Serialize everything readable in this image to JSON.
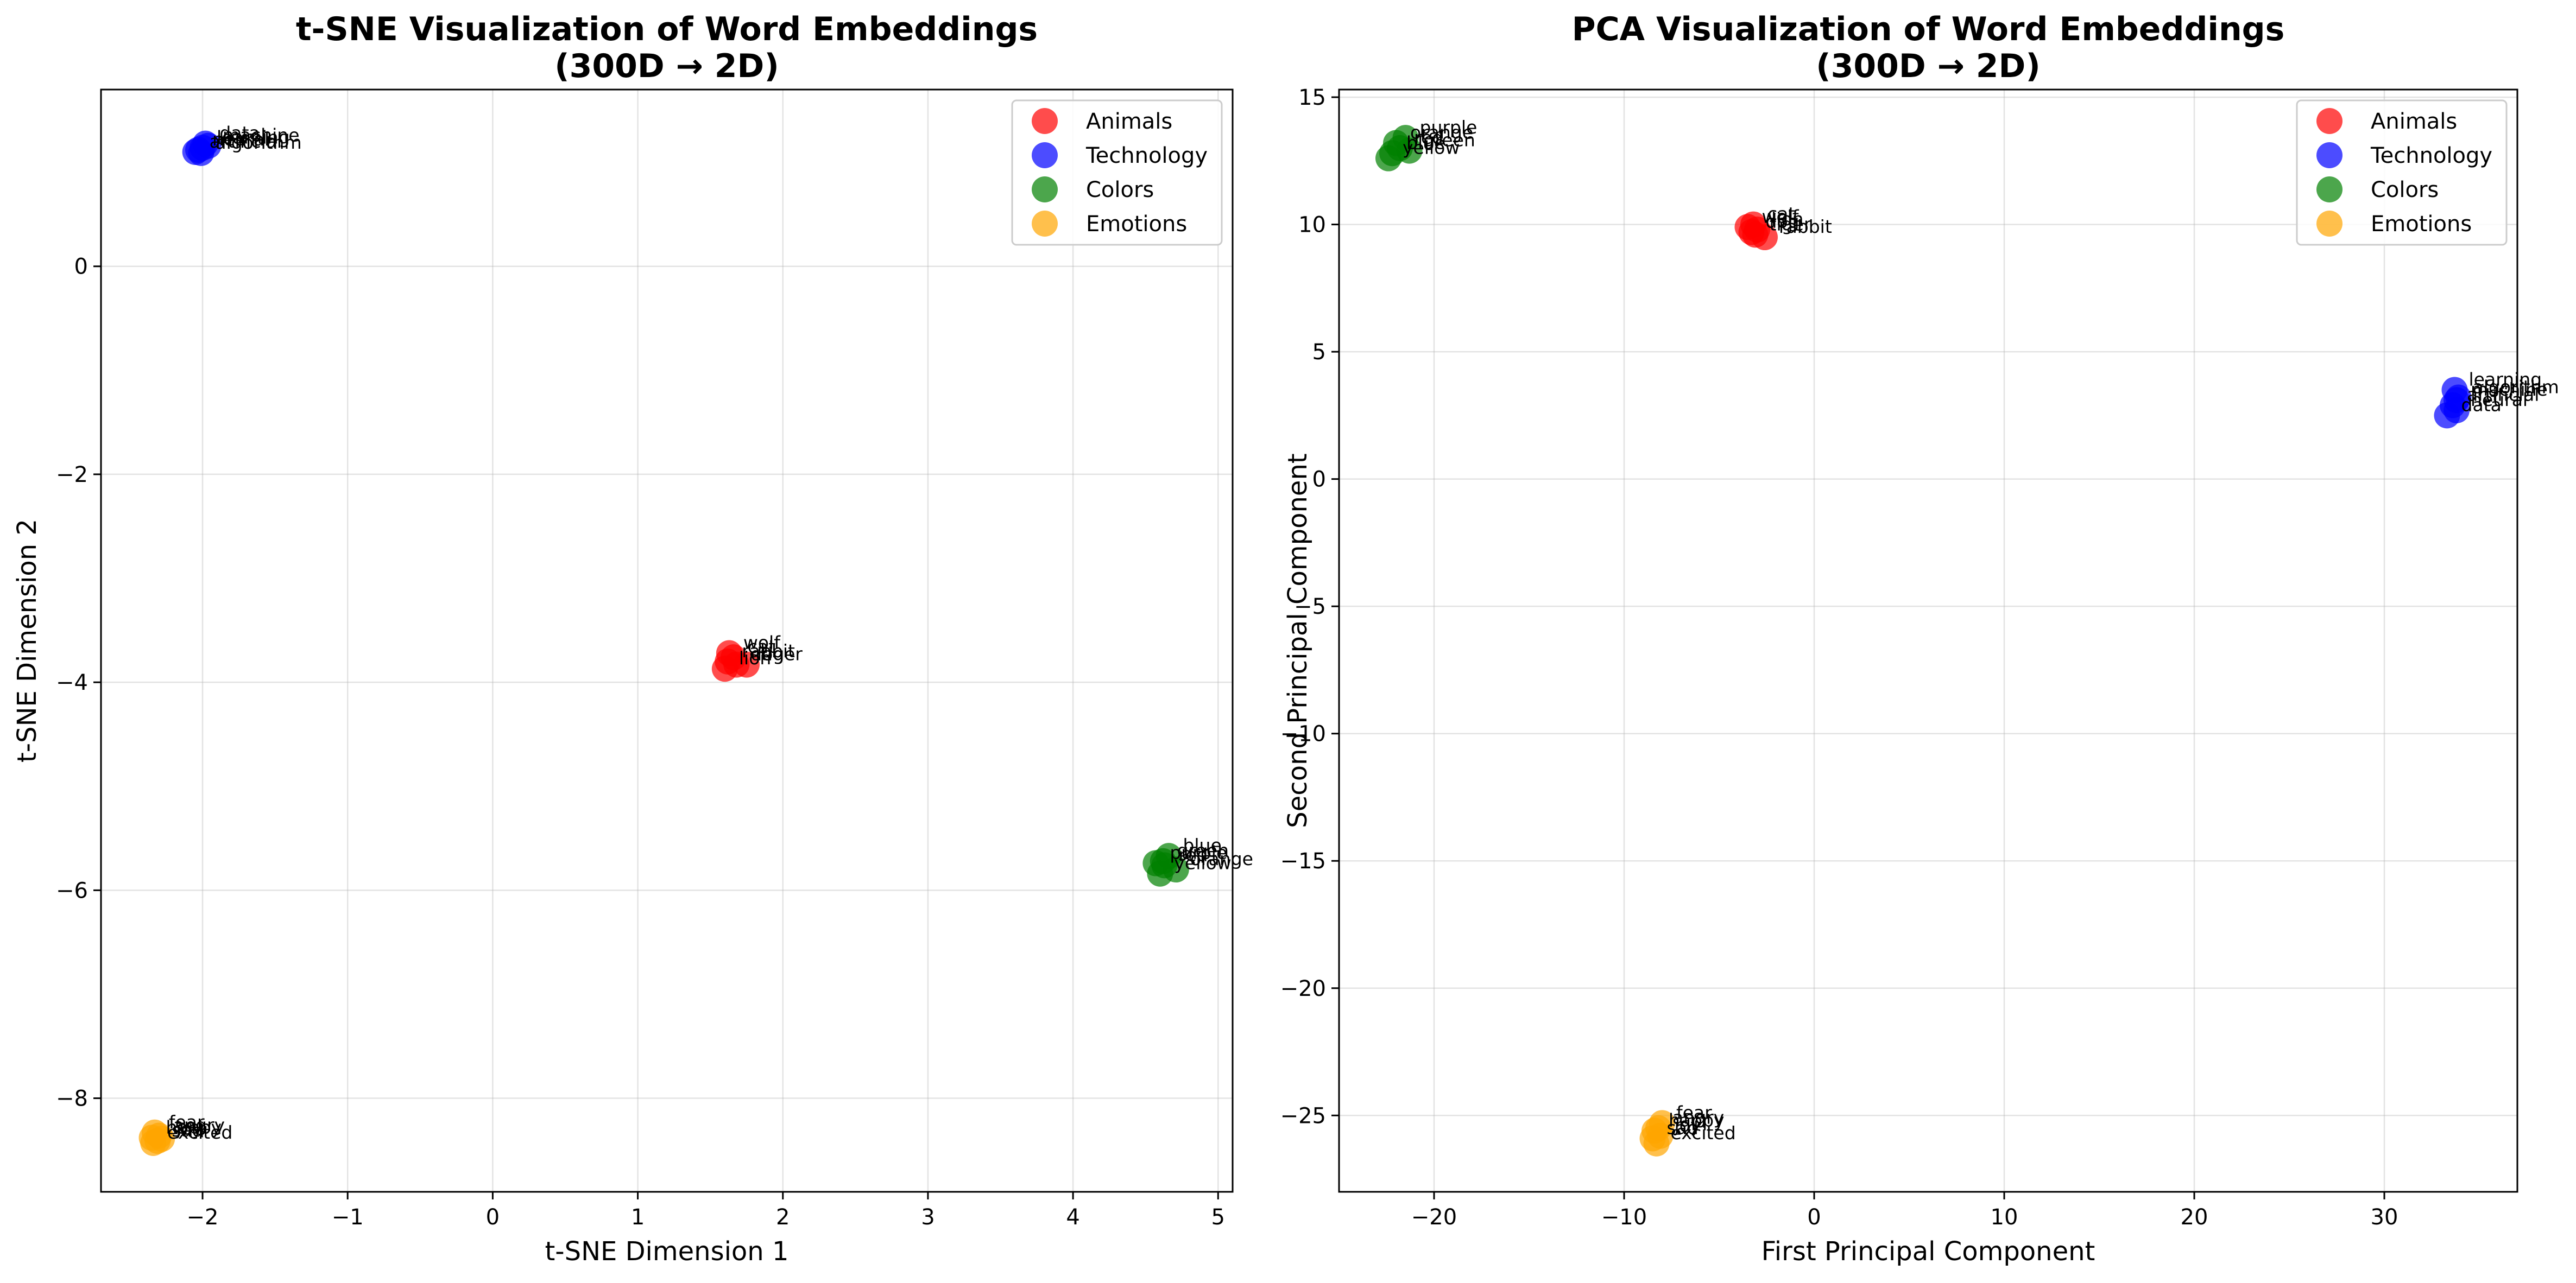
{
  "chart_data": [
    {
      "type": "scatter",
      "title": "t-SNE Visualization of Word Embeddings\n(300D → 2D)",
      "xlabel": "t-SNE Dimension 1",
      "ylabel": "t-SNE Dimension 2",
      "xlim": [
        -2.7,
        5.1
      ],
      "ylim": [
        -8.9,
        1.7
      ],
      "xticks": [
        -2,
        -1,
        0,
        1,
        2,
        3,
        4,
        5
      ],
      "yticks": [
        -8,
        -6,
        -4,
        -2,
        0
      ],
      "grid": true,
      "legend_position": "top-right",
      "series": [
        {
          "name": "Animals",
          "color": "#ff0000",
          "points": [
            {
              "x": 1.63,
              "y": -3.72,
              "label": "wolf"
            },
            {
              "x": 1.66,
              "y": -3.76,
              "label": "cat"
            },
            {
              "x": 1.62,
              "y": -3.8,
              "label": "rabbit"
            },
            {
              "x": 1.68,
              "y": -3.83,
              "label": "dog"
            },
            {
              "x": 1.75,
              "y": -3.83,
              "label": "tiger"
            },
            {
              "x": 1.6,
              "y": -3.87,
              "label": "lion"
            }
          ]
        },
        {
          "name": "Technology",
          "color": "#0000ff",
          "points": [
            {
              "x": -1.98,
              "y": 1.18,
              "label": "data"
            },
            {
              "x": -1.96,
              "y": 1.16,
              "label": "machine"
            },
            {
              "x": -2.0,
              "y": 1.14,
              "label": "learning"
            },
            {
              "x": -2.03,
              "y": 1.12,
              "label": "neural"
            },
            {
              "x": -2.05,
              "y": 1.1,
              "label": "artificial"
            },
            {
              "x": -2.01,
              "y": 1.09,
              "label": "algorithm"
            }
          ]
        },
        {
          "name": "Colors",
          "color": "#008000",
          "points": [
            {
              "x": 4.66,
              "y": -5.67,
              "label": "blue"
            },
            {
              "x": 4.62,
              "y": -5.72,
              "label": "green"
            },
            {
              "x": 4.57,
              "y": -5.74,
              "label": "purple"
            },
            {
              "x": 4.63,
              "y": -5.76,
              "label": "red"
            },
            {
              "x": 4.71,
              "y": -5.8,
              "label": "orange"
            },
            {
              "x": 4.6,
              "y": -5.84,
              "label": "yellow"
            }
          ]
        },
        {
          "name": "Emotions",
          "color": "#ffa500",
          "points": [
            {
              "x": -2.33,
              "y": -8.33,
              "label": "fear"
            },
            {
              "x": -2.3,
              "y": -8.36,
              "label": "angry"
            },
            {
              "x": -2.35,
              "y": -8.38,
              "label": "happy"
            },
            {
              "x": -2.28,
              "y": -8.39,
              "label": "joy"
            },
            {
              "x": -2.31,
              "y": -8.41,
              "label": "sad"
            },
            {
              "x": -2.34,
              "y": -8.43,
              "label": "excited"
            }
          ]
        }
      ]
    },
    {
      "type": "scatter",
      "title": "PCA Visualization of Word Embeddings\n(300D → 2D)",
      "xlabel": "First Principal Component",
      "ylabel": "Second Principal Component",
      "xlim": [
        -25,
        37
      ],
      "ylim": [
        -28,
        15.3
      ],
      "xticks": [
        -20,
        -10,
        0,
        10,
        20,
        30
      ],
      "yticks": [
        -25,
        -20,
        -15,
        -10,
        -5,
        0,
        5,
        10,
        15
      ],
      "grid": true,
      "legend_position": "top-right",
      "series": [
        {
          "name": "Animals",
          "color": "#ff0000",
          "points": [
            {
              "x": -3.2,
              "y": 10.0,
              "label": "cat"
            },
            {
              "x": -3.5,
              "y": 9.9,
              "label": "wolf"
            },
            {
              "x": -3.0,
              "y": 9.8,
              "label": "lion"
            },
            {
              "x": -3.3,
              "y": 9.7,
              "label": "dog"
            },
            {
              "x": -2.6,
              "y": 9.5,
              "label": "rabbit"
            },
            {
              "x": -3.1,
              "y": 9.6,
              "label": "tiger"
            }
          ]
        },
        {
          "name": "Technology",
          "color": "#0000ff",
          "points": [
            {
              "x": 33.7,
              "y": 3.5,
              "label": "learning"
            },
            {
              "x": 33.9,
              "y": 3.2,
              "label": "algorithm"
            },
            {
              "x": 33.8,
              "y": 3.1,
              "label": "machine"
            },
            {
              "x": 33.6,
              "y": 2.9,
              "label": "artificial"
            },
            {
              "x": 33.8,
              "y": 2.7,
              "label": "neural"
            },
            {
              "x": 33.3,
              "y": 2.5,
              "label": "data"
            }
          ]
        },
        {
          "name": "Colors",
          "color": "#008000",
          "points": [
            {
              "x": -21.5,
              "y": 13.4,
              "label": "purple"
            },
            {
              "x": -22.0,
              "y": 13.2,
              "label": "orange"
            },
            {
              "x": -21.8,
              "y": 13.0,
              "label": "red"
            },
            {
              "x": -21.3,
              "y": 12.9,
              "label": "green"
            },
            {
              "x": -22.2,
              "y": 12.8,
              "label": "blue"
            },
            {
              "x": -22.4,
              "y": 12.6,
              "label": "yellow"
            }
          ]
        },
        {
          "name": "Emotions",
          "color": "#ffa500",
          "points": [
            {
              "x": -8.0,
              "y": -25.3,
              "label": "fear"
            },
            {
              "x": -8.2,
              "y": -25.5,
              "label": "angry"
            },
            {
              "x": -8.4,
              "y": -25.6,
              "label": "happy"
            },
            {
              "x": -8.1,
              "y": -25.8,
              "label": "joy"
            },
            {
              "x": -8.5,
              "y": -25.9,
              "label": "sad"
            },
            {
              "x": -8.3,
              "y": -26.1,
              "label": "excited"
            }
          ]
        }
      ]
    }
  ]
}
